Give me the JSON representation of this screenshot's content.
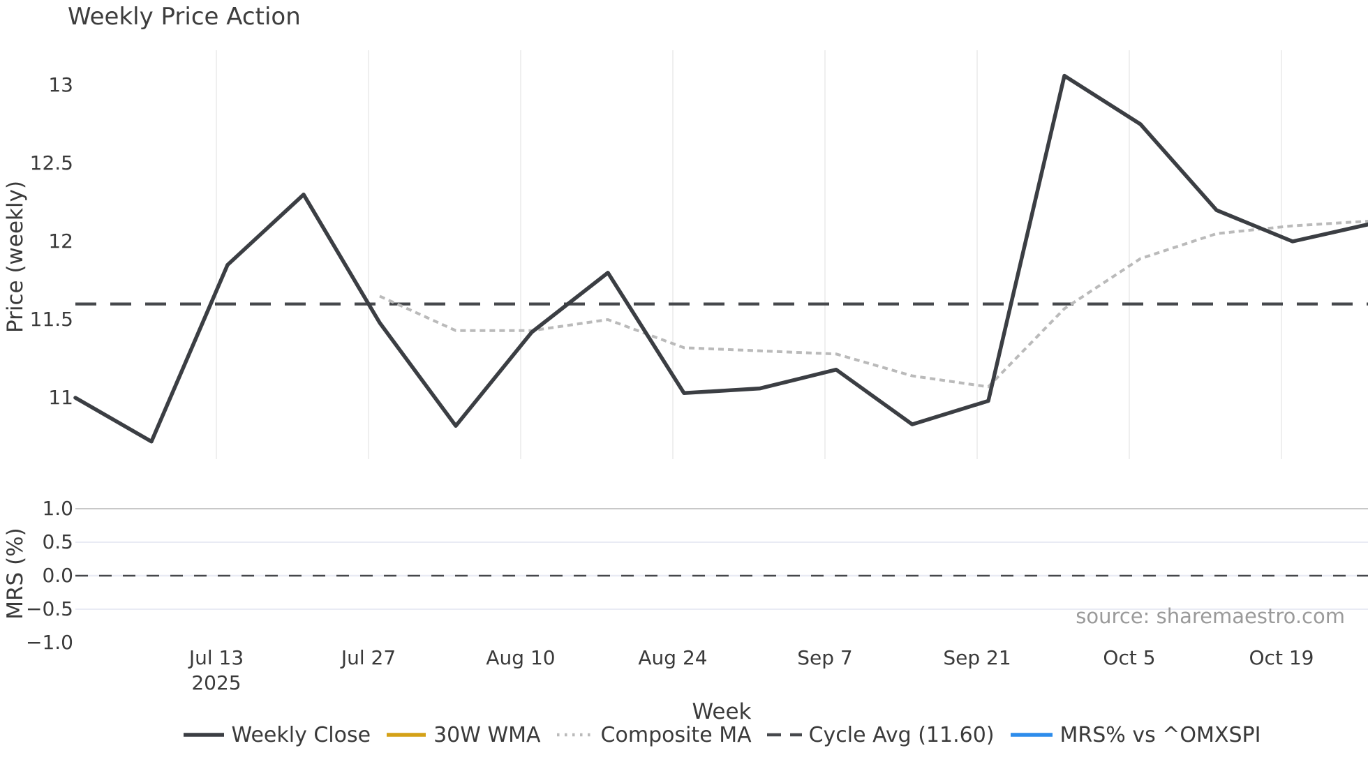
{
  "title": "Weekly Price Action",
  "source": "source: sharemaestro.com",
  "price_panel": {
    "ylabel": "Price (weekly)",
    "yticks": [
      {
        "label": "13",
        "value": 13
      },
      {
        "label": "12.5",
        "value": 12.5
      },
      {
        "label": "12",
        "value": 12
      },
      {
        "label": "11.5",
        "value": 11.5
      },
      {
        "label": "11",
        "value": 11
      }
    ]
  },
  "mrs_panel": {
    "ylabel": "MRS (%)",
    "yticks": [
      {
        "label": "1.0",
        "value": 1.0
      },
      {
        "label": "0.5",
        "value": 0.5
      },
      {
        "label": "0.0",
        "value": 0.0
      },
      {
        "label": "−0.5",
        "value": -0.5
      },
      {
        "label": "−1.0",
        "value": -1.0
      }
    ]
  },
  "xaxis": {
    "label": "Week",
    "ticks": [
      "Jul 13",
      "Jul 27",
      "Aug 10",
      "Aug 24",
      "Sep 7",
      "Sep 21",
      "Oct 5",
      "Oct 19"
    ],
    "year_label": "2025"
  },
  "legend": [
    {
      "label": "Weekly Close",
      "style": "solid",
      "color": "#3b3e43"
    },
    {
      "label": "30W WMA",
      "style": "solid",
      "color": "#d4a117"
    },
    {
      "label": "Composite MA",
      "style": "dotted",
      "color": "#bababa"
    },
    {
      "label": "Cycle Avg (11.60)",
      "style": "dashed",
      "color": "#46484c"
    },
    {
      "label": "MRS% vs ^OMXSPI",
      "style": "solid",
      "color": "#2d8ceb"
    }
  ],
  "chart_data": {
    "type": "line",
    "title": "Weekly Price Action",
    "xlabel": "Week",
    "x_tick_labels": [
      "Jul 13",
      "Jul 27",
      "Aug 10",
      "Aug 24",
      "Sep 7",
      "Sep 21",
      "Oct 5",
      "Oct 19"
    ],
    "year": "2025",
    "weeks": [
      "Jun 30",
      "Jul 7",
      "Jul 14",
      "Jul 21",
      "Jul 28",
      "Aug 4",
      "Aug 11",
      "Aug 18",
      "Aug 25",
      "Sep 1",
      "Sep 8",
      "Sep 15",
      "Sep 22",
      "Sep 29",
      "Oct 6",
      "Oct 13",
      "Oct 20",
      "Oct 27"
    ],
    "series": [
      {
        "name": "Weekly Close",
        "panel": "price",
        "style": "solid",
        "color": "#3b3e43",
        "values": [
          11.0,
          10.72,
          11.85,
          12.3,
          11.48,
          10.82,
          11.42,
          11.8,
          11.03,
          11.06,
          11.18,
          10.83,
          10.98,
          13.06,
          12.75,
          12.2,
          12.0,
          12.11
        ]
      },
      {
        "name": "Composite MA",
        "panel": "price",
        "style": "dotted",
        "color": "#bababa",
        "values": [
          null,
          null,
          null,
          null,
          11.65,
          11.43,
          11.43,
          11.5,
          11.32,
          11.3,
          11.28,
          11.14,
          11.07,
          11.57,
          11.89,
          12.05,
          12.1,
          12.13
        ]
      },
      {
        "name": "Cycle Avg (11.60)",
        "panel": "price",
        "style": "dashed",
        "color": "#46484c",
        "constant": 11.6
      },
      {
        "name": "30W WMA",
        "panel": "price",
        "style": "solid",
        "color": "#d4a117",
        "values": [],
        "visible": false
      },
      {
        "name": "MRS% vs ^OMXSPI",
        "panel": "mrs",
        "style": "solid",
        "color": "#2d8ceb",
        "values": [],
        "visible": false
      }
    ],
    "price_axis": {
      "label": "Price (weekly)",
      "ticks": [
        13,
        12.5,
        12,
        11.5,
        11
      ],
      "range": [
        10.61,
        13.22
      ]
    },
    "mrs_axis": {
      "label": "MRS (%)",
      "ticks": [
        1.0,
        0.5,
        0.0,
        -0.5,
        -1.0
      ],
      "range": [
        -1.25,
        1.25
      ],
      "zero_line": 0.0
    },
    "legend_position": "bottom center",
    "grid": {
      "price_panel": "vertical only",
      "mrs_panel": "horizontal only"
    }
  }
}
